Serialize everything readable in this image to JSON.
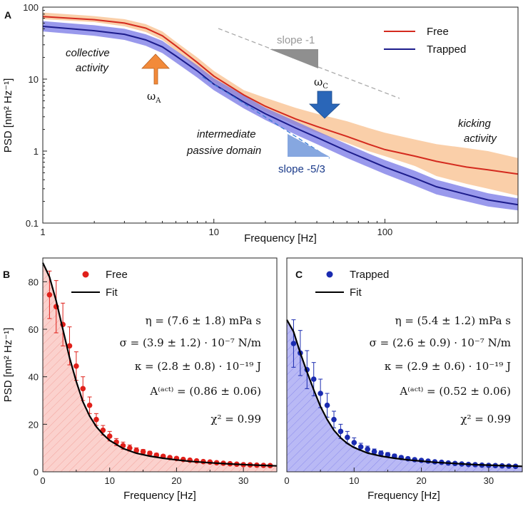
{
  "figure": {
    "panel_a": {
      "letter": "A"
    },
    "panel_b": {
      "letter": "B"
    },
    "panel_c": {
      "letter": "C"
    }
  },
  "colors": {
    "free_line": "#d42a1e",
    "free_band": "#f9c79a",
    "trapped_line": "#1c1c8c",
    "trapped_band": "#7777e6",
    "arrow_a": "#f28a3a",
    "arrow_c": "#2a66b8",
    "slope1": "#999999",
    "slope53": "#3a7bd5",
    "free_fill": "#f7b3ad",
    "trapped_fill": "#9a9af2",
    "free_marker": "#e0201a",
    "trapped_marker": "#1a2bb0"
  },
  "chart_data": [
    {
      "id": "A",
      "type": "line",
      "xscale": "log",
      "yscale": "log",
      "xlabel": "Frequency [Hz]",
      "ylabel": "PSD [nm² Hz⁻¹]",
      "xlim": [
        1,
        600
      ],
      "ylim": [
        0.1,
        100
      ],
      "xticks": [
        {
          "value": 1,
          "label": "1"
        },
        {
          "value": 10,
          "label": "10"
        },
        {
          "value": 100,
          "label": "100"
        }
      ],
      "yticks": [
        {
          "value": 0.1,
          "label": "0.1"
        },
        {
          "value": 1,
          "label": "1"
        },
        {
          "value": 10,
          "label": "10"
        },
        {
          "value": 100,
          "label": "100"
        }
      ],
      "legend": {
        "position": "top-right",
        "entries": [
          "Free",
          "Trapped"
        ]
      },
      "series": [
        {
          "name": "Free",
          "x": [
            1,
            2,
            3,
            4,
            5,
            6,
            8,
            10,
            15,
            20,
            30,
            40,
            60,
            80,
            100,
            150,
            200,
            300,
            400,
            600
          ],
          "y": [
            74,
            67,
            60,
            51,
            40,
            29,
            17,
            11,
            6,
            4.2,
            2.8,
            2.2,
            1.6,
            1.25,
            1.05,
            0.85,
            0.72,
            0.6,
            0.55,
            0.48
          ],
          "band_low": [
            68,
            62,
            54,
            45,
            35,
            25,
            14,
            9,
            5,
            3.5,
            2.3,
            1.8,
            1.3,
            1.0,
            0.85,
            0.62,
            0.45,
            0.35,
            0.3,
            0.24
          ],
          "band_high": [
            84,
            75,
            68,
            58,
            46,
            33,
            20,
            13,
            7,
            5.5,
            4.0,
            3.3,
            2.6,
            2.1,
            1.8,
            1.45,
            1.25,
            1.1,
            1.0,
            0.8
          ]
        },
        {
          "name": "Trapped",
          "x": [
            1,
            2,
            3,
            4,
            5,
            6,
            8,
            10,
            15,
            20,
            30,
            40,
            60,
            80,
            100,
            150,
            200,
            300,
            400,
            600
          ],
          "y": [
            54,
            47,
            42,
            35,
            28,
            21,
            13,
            8.5,
            4.8,
            3.3,
            2.1,
            1.55,
            1.0,
            0.75,
            0.6,
            0.42,
            0.32,
            0.25,
            0.21,
            0.18
          ],
          "band_low": [
            46,
            40,
            35,
            29,
            23,
            17,
            10.5,
            7,
            3.9,
            2.7,
            1.7,
            1.25,
            0.8,
            0.6,
            0.48,
            0.33,
            0.25,
            0.2,
            0.17,
            0.15
          ],
          "band_high": [
            64,
            56,
            50,
            42,
            34,
            25,
            15.5,
            10.3,
            5.9,
            4.0,
            2.6,
            1.9,
            1.25,
            0.93,
            0.75,
            0.53,
            0.4,
            0.31,
            0.26,
            0.22
          ]
        }
      ],
      "annotations": {
        "collective_1": "collective",
        "collective_2": "activity",
        "omega_a": "ω",
        "omega_a_sub": "A",
        "omega_c": "ω",
        "omega_c_sub": "C",
        "slope_minus_1": "slope -1",
        "slope_minus_53": "slope -5/3",
        "intermediate_1": "intermediate",
        "intermediate_2": "passive domain",
        "kicking_1": "kicking",
        "kicking_2": "activity"
      }
    },
    {
      "id": "B",
      "type": "scatter",
      "xlabel": "Frequency [Hz]",
      "ylabel": "PSD [nm² Hz⁻¹]",
      "xlim": [
        0,
        35
      ],
      "ylim": [
        0,
        90
      ],
      "xticks": [
        0,
        10,
        20,
        30
      ],
      "yticks": [
        0,
        20,
        40,
        60,
        80
      ],
      "legend": {
        "position": "top-left",
        "entries": [
          "Free",
          "Fit"
        ]
      },
      "points": {
        "name": "Free",
        "x": [
          1,
          2,
          3,
          4,
          5,
          6,
          7,
          8,
          9,
          10,
          11,
          12,
          13,
          14,
          15,
          16,
          17,
          18,
          19,
          20,
          21,
          22,
          23,
          24,
          25,
          26,
          27,
          28,
          29,
          30,
          31,
          32,
          33,
          34
        ],
        "y": [
          74.5,
          69.5,
          62,
          53,
          44.5,
          35,
          28,
          22,
          17.5,
          15,
          12.5,
          11,
          10,
          9,
          8.5,
          7.8,
          7,
          6.5,
          6,
          5.6,
          5.2,
          4.9,
          4.6,
          4.3,
          4.1,
          3.8,
          3.6,
          3.4,
          3.2,
          3.0,
          2.9,
          2.8,
          2.7,
          2.6
        ],
        "err": [
          10,
          11,
          9,
          8,
          6,
          5,
          3.5,
          2.5,
          2,
          2,
          1.5,
          1.5,
          1.3,
          1.1,
          0.9,
          0.8,
          0.8,
          0.7,
          0.6,
          0.6,
          0.5,
          0.5,
          0.5,
          0.5,
          0.4,
          0.4,
          0.4,
          0.4,
          0.4,
          0.4,
          0.3,
          0.3,
          0.3,
          0.3
        ]
      },
      "fit": {
        "name": "Fit",
        "x": [
          0,
          1,
          2,
          3,
          4,
          5,
          6,
          7,
          8,
          9,
          10,
          12,
          14,
          16,
          18,
          20,
          22,
          25,
          28,
          31,
          35
        ],
        "y": [
          88,
          82,
          72,
          60,
          48,
          38,
          29.5,
          23.5,
          19,
          15.8,
          13.2,
          9.8,
          7.8,
          6.6,
          5.7,
          5.0,
          4.4,
          3.8,
          3.3,
          2.9,
          2.5
        ]
      },
      "params": [
        {
          "lhs": "η = (7.6 ± 1.8) mPa s"
        },
        {
          "lhs": "σ = (3.9 ± 1.2) · 10⁻⁷  N/m"
        },
        {
          "lhs": "κ = (2.8 ± 0.8) · 10⁻¹⁹  J"
        },
        {
          "lhs": "A⁽ᵃᶜᵗ⁾ = (0.86 ± 0.06)"
        },
        {
          "lhs": "χ² = 0.99"
        }
      ]
    },
    {
      "id": "C",
      "type": "scatter",
      "xlabel": "Frequency [Hz]",
      "ylabel": "",
      "xlim": [
        0,
        35
      ],
      "ylim": [
        0,
        90
      ],
      "xticks": [
        0,
        10,
        20,
        30
      ],
      "yticks": [],
      "legend": {
        "position": "top-left",
        "entries": [
          "Trapped",
          "Fit"
        ]
      },
      "points": {
        "name": "Trapped",
        "x": [
          1,
          2,
          3,
          4,
          5,
          6,
          7,
          8,
          9,
          10,
          11,
          12,
          13,
          14,
          15,
          16,
          17,
          18,
          19,
          20,
          21,
          22,
          23,
          24,
          25,
          26,
          27,
          28,
          29,
          30,
          31,
          32,
          33,
          34
        ],
        "y": [
          54,
          50,
          43,
          39,
          33,
          28,
          22,
          17,
          14.5,
          12.3,
          10.5,
          9.5,
          8.5,
          7.8,
          7.2,
          6.6,
          6,
          5.5,
          5.1,
          4.8,
          4.5,
          4.2,
          4,
          3.7,
          3.5,
          3.3,
          3.1,
          3,
          2.8,
          2.7,
          2.6,
          2.5,
          2.4,
          2.3
        ],
        "err": [
          10,
          9.5,
          8,
          7,
          6,
          5,
          3.5,
          3,
          2.5,
          2,
          1.5,
          1.3,
          1.1,
          1,
          0.9,
          0.8,
          0.7,
          0.7,
          0.6,
          0.6,
          0.5,
          0.5,
          0.5,
          0.4,
          0.4,
          0.4,
          0.4,
          0.3,
          0.3,
          0.3,
          0.3,
          0.3,
          0.3,
          0.3
        ]
      },
      "fit": {
        "name": "Fit",
        "x": [
          0,
          1,
          2,
          3,
          4,
          5,
          6,
          7,
          8,
          9,
          10,
          12,
          14,
          16,
          18,
          20,
          22,
          25,
          28,
          31,
          35
        ],
        "y": [
          64,
          59,
          50,
          42,
          34.5,
          27.5,
          22,
          17.5,
          14.3,
          11.9,
          10.2,
          7.9,
          6.6,
          5.7,
          5.0,
          4.5,
          4.0,
          3.5,
          3.0,
          2.7,
          2.3
        ]
      },
      "params": [
        {
          "lhs": "η = (5.4 ± 1.2) mPa s"
        },
        {
          "lhs": "σ = (2.6 ± 0.9) · 10⁻⁷  N/m"
        },
        {
          "lhs": "κ = (2.9 ± 0.6) · 10⁻¹⁹  J"
        },
        {
          "lhs": "A⁽ᵃᶜᵗ⁾ = (0.52 ± 0.06)"
        },
        {
          "lhs": "χ² = 0.99"
        }
      ]
    }
  ]
}
